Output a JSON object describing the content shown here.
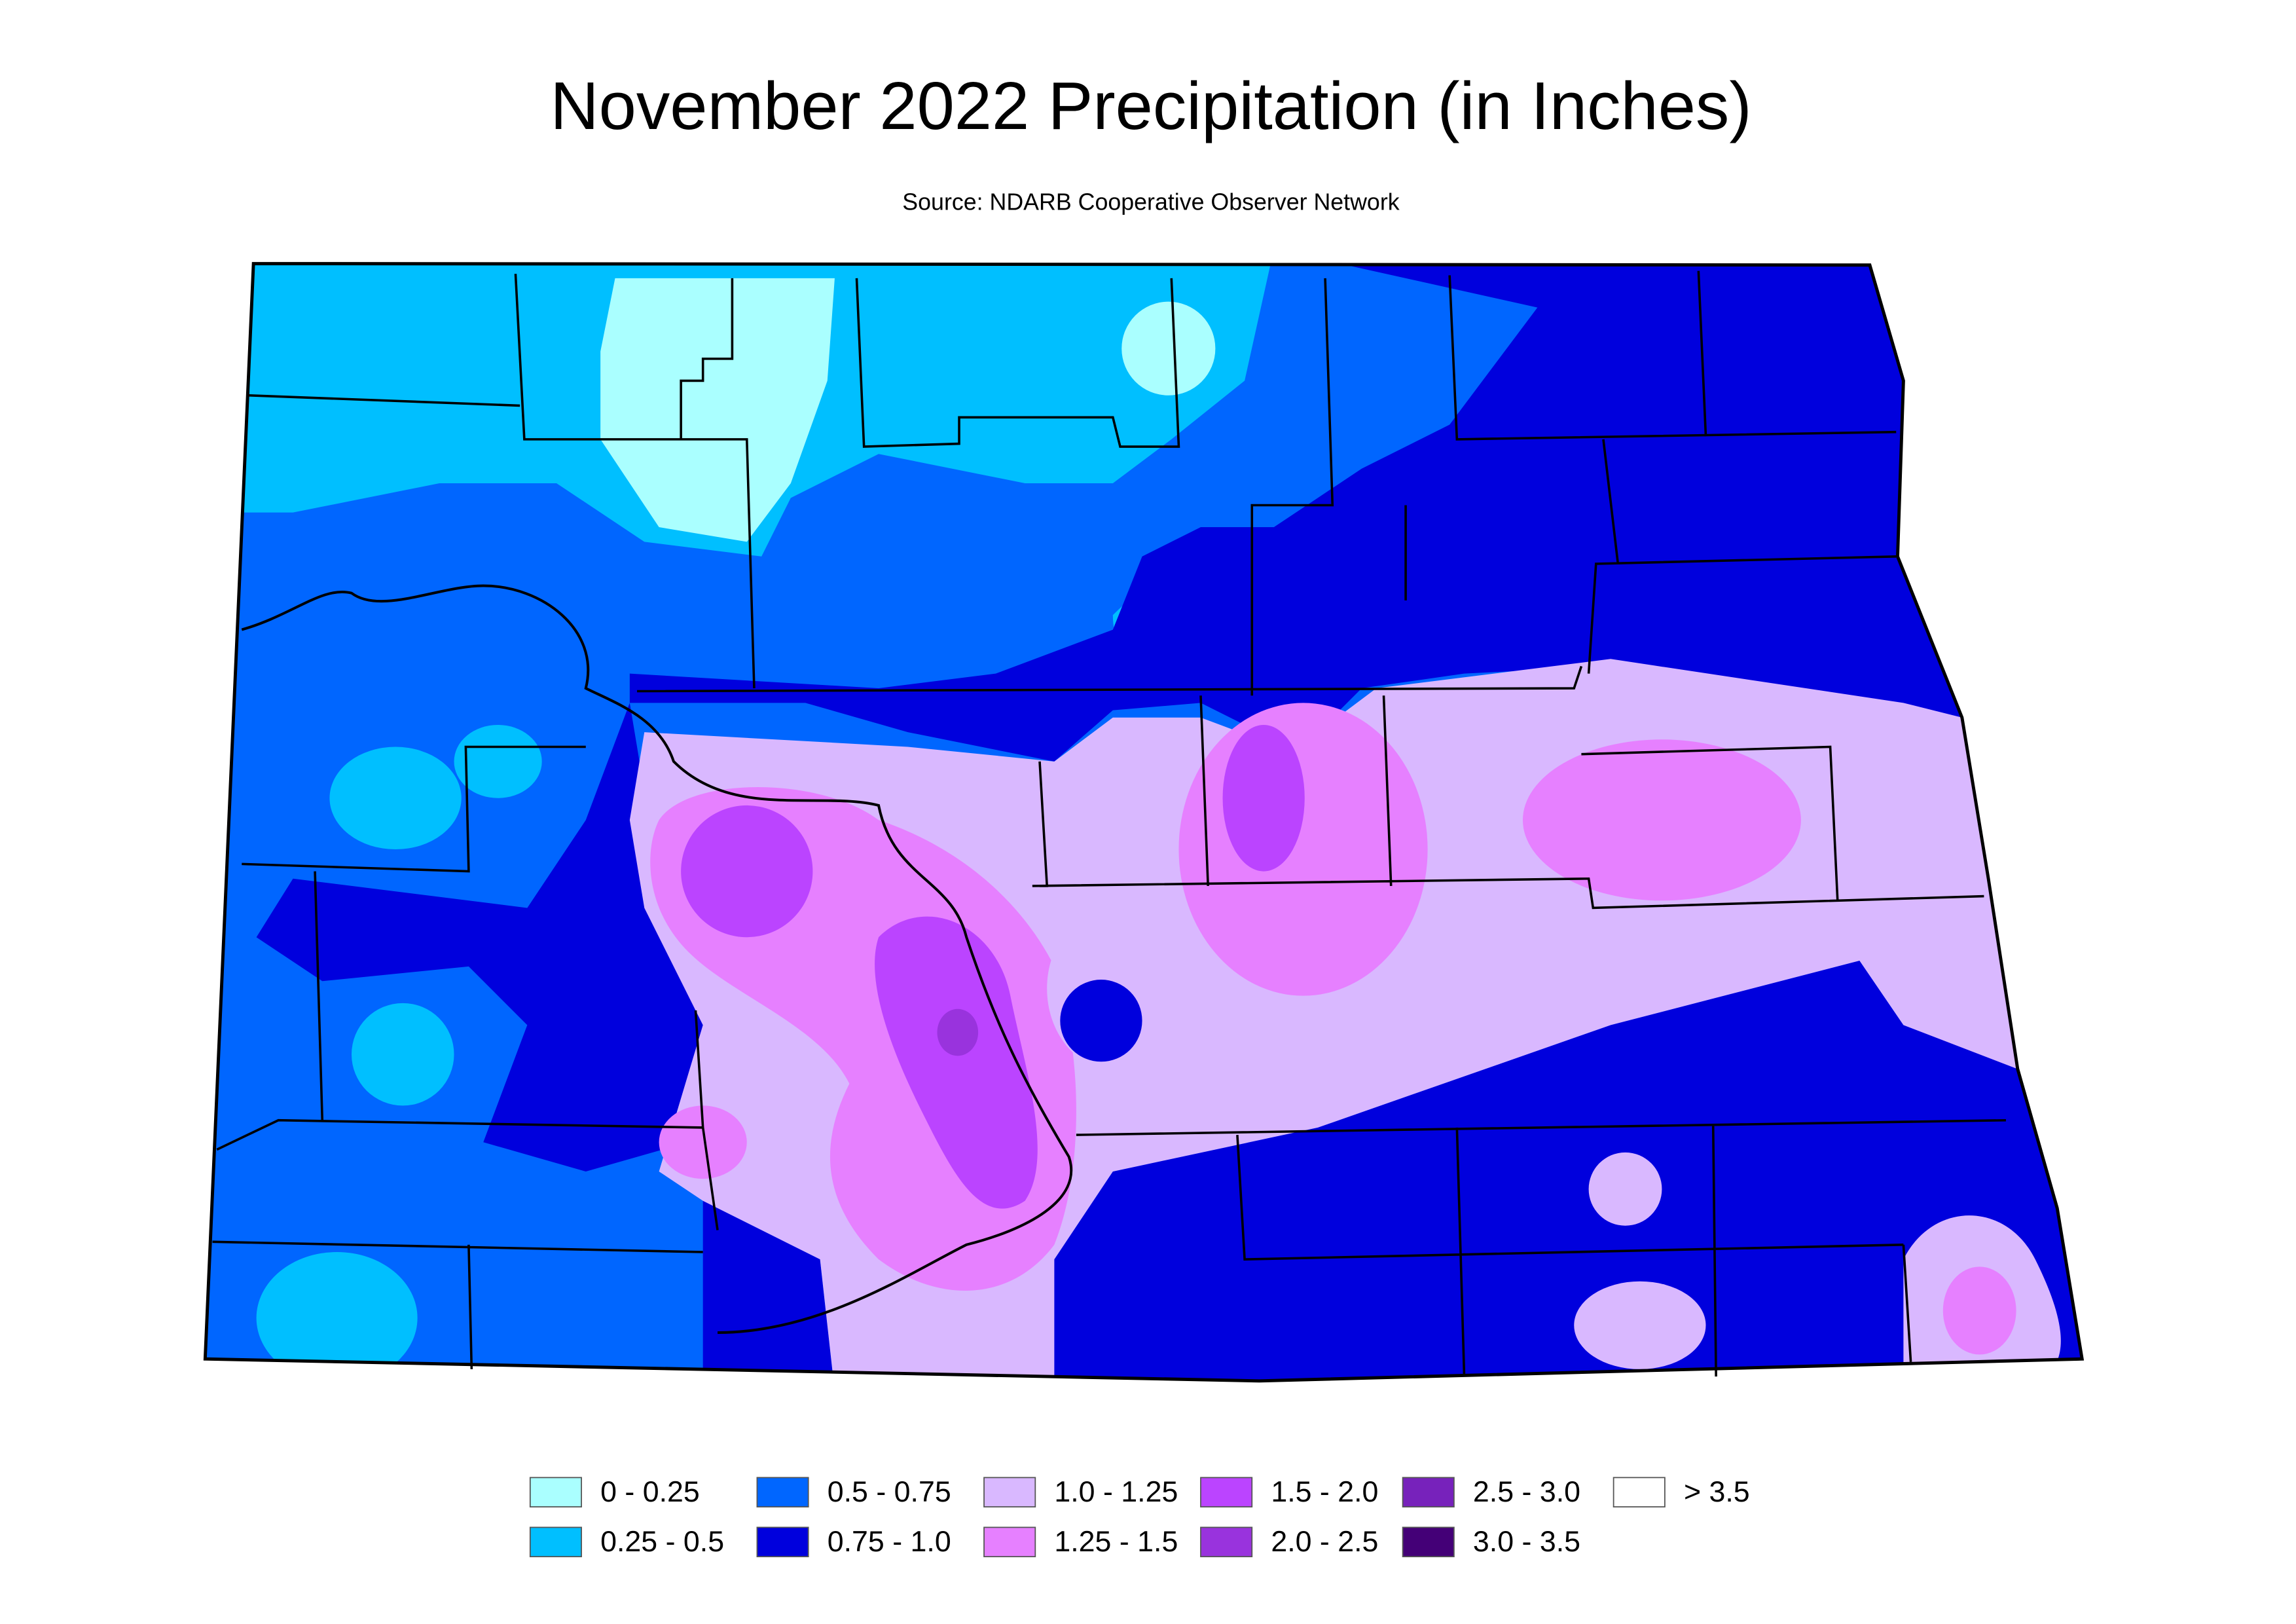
{
  "header": {
    "title": "November 2022 Precipitation (in Inches)",
    "subtitle": "Source: NDARB Cooperative Observer Network"
  },
  "legend": [
    {
      "label": "0 - 0.25",
      "color": "#aaffff"
    },
    {
      "label": "0.25 - 0.5",
      "color": "#00bfff"
    },
    {
      "label": "0.5 - 0.75",
      "color": "#0066ff"
    },
    {
      "label": "0.75 - 1.0",
      "color": "#0000dd"
    },
    {
      "label": "1.0 - 1.25",
      "color": "#d9b8ff"
    },
    {
      "label": "1.25 - 1.5",
      "color": "#e680ff"
    },
    {
      "label": "1.5 - 2.0",
      "color": "#bb44ff"
    },
    {
      "label": "2.0 - 2.5",
      "color": "#9933dd"
    },
    {
      "label": "2.5 - 3.0",
      "color": "#7722bb"
    },
    {
      "label": "3.0 - 3.5",
      "color": "#440077"
    },
    {
      "label": "> 3.5",
      "color": "#ffffff"
    }
  ]
}
